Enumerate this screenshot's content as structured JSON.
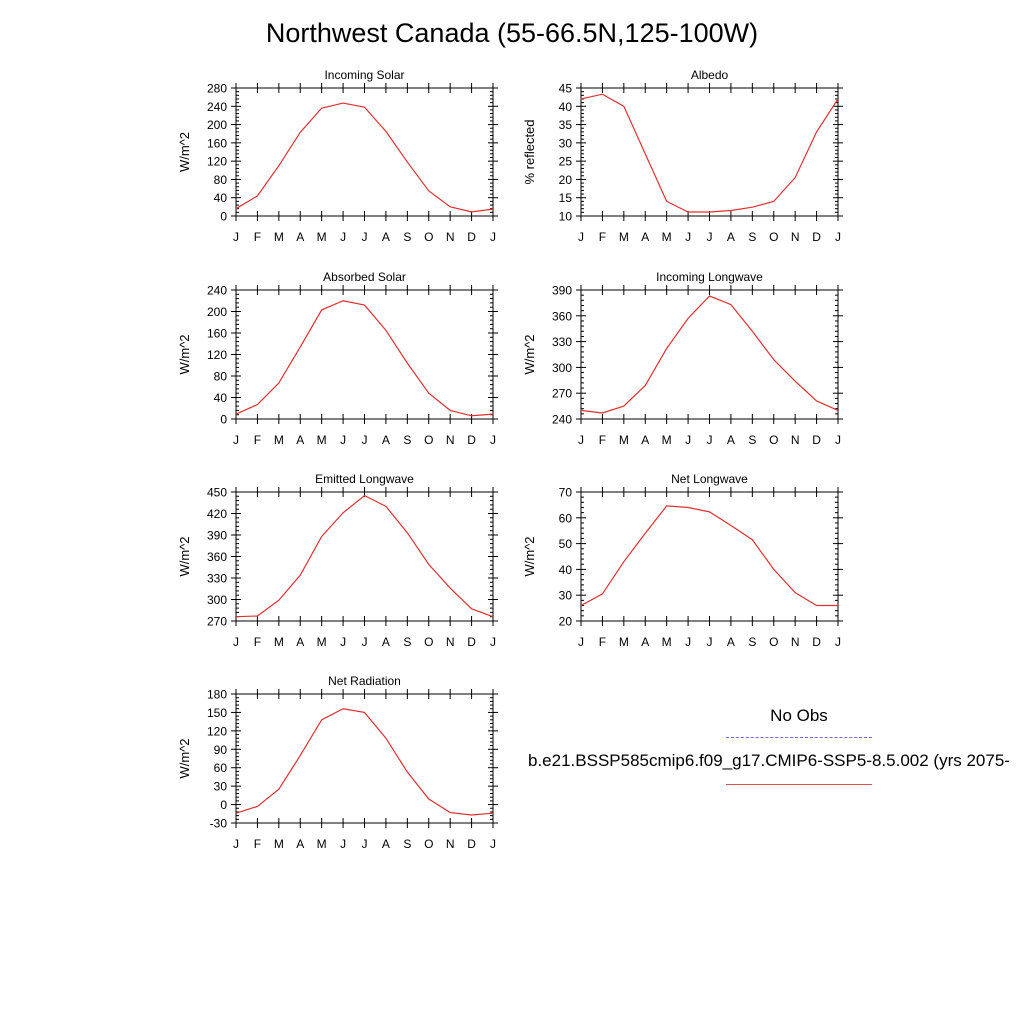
{
  "title": "Northwest Canada (55-66.5N,125-100W)",
  "legend": {
    "obs_label": "No Obs",
    "obs_color": "#6b6bdc",
    "model_label": "b.e21.BSSP585cmip6.f09_g17.CMIP6-SSP5-8.5.002 (yrs 2075-",
    "model_color": "#e03030"
  },
  "chart_data": [
    {
      "type": "line",
      "title": "Incoming Solar",
      "ylabel": "W/m^2",
      "x": [
        "J",
        "F",
        "M",
        "A",
        "M",
        "J",
        "J",
        "A",
        "S",
        "O",
        "N",
        "D",
        "J"
      ],
      "ylim": [
        0,
        280
      ],
      "yticks": [
        0,
        40,
        80,
        120,
        160,
        200,
        240,
        280
      ],
      "series": [
        {
          "values": [
            16,
            44,
            110,
            183,
            236,
            247,
            238,
            185,
            118,
            55,
            20,
            9,
            15
          ],
          "color": "#e03030"
        }
      ]
    },
    {
      "type": "line",
      "title": "Albedo",
      "ylabel": "% reflected",
      "x": [
        "J",
        "F",
        "M",
        "A",
        "M",
        "J",
        "J",
        "A",
        "S",
        "O",
        "N",
        "D",
        "J"
      ],
      "ylim": [
        10,
        45
      ],
      "yticks": [
        10,
        15,
        20,
        25,
        30,
        35,
        40,
        45
      ],
      "series": [
        {
          "values": [
            42,
            43.3,
            40,
            27,
            14,
            11.1,
            11.1,
            11.5,
            12.4,
            14,
            20.5,
            33,
            42
          ],
          "color": "#e03030"
        }
      ]
    },
    {
      "type": "line",
      "title": "Absorbed Solar",
      "ylabel": "W/m^2",
      "x": [
        "J",
        "F",
        "M",
        "A",
        "M",
        "J",
        "J",
        "A",
        "S",
        "O",
        "N",
        "D",
        "J"
      ],
      "ylim": [
        0,
        240
      ],
      "yticks": [
        0,
        40,
        80,
        120,
        160,
        200,
        240
      ],
      "series": [
        {
          "values": [
            9,
            27,
            67,
            134,
            203,
            220,
            212,
            165,
            104,
            48,
            16,
            6,
            9
          ],
          "color": "#e03030"
        }
      ]
    },
    {
      "type": "line",
      "title": "Incoming Longwave",
      "ylabel": "W/m^2",
      "x": [
        "J",
        "F",
        "M",
        "A",
        "M",
        "J",
        "J",
        "A",
        "S",
        "O",
        "N",
        "D",
        "J"
      ],
      "ylim": [
        240,
        390
      ],
      "yticks": [
        240,
        270,
        300,
        330,
        360,
        390
      ],
      "series": [
        {
          "values": [
            250,
            247,
            255,
            279,
            322,
            357,
            383,
            373,
            342,
            309,
            284,
            261,
            250
          ],
          "color": "#e03030"
        }
      ]
    },
    {
      "type": "line",
      "title": "Emitted Longwave",
      "ylabel": "W/m^2",
      "x": [
        "J",
        "F",
        "M",
        "A",
        "M",
        "J",
        "J",
        "A",
        "S",
        "O",
        "N",
        "D",
        "J"
      ],
      "ylim": [
        270,
        450
      ],
      "yticks": [
        270,
        300,
        330,
        360,
        390,
        420,
        450
      ],
      "series": [
        {
          "values": [
            276,
            277,
            299,
            334,
            388,
            421,
            445,
            430,
            393,
            349,
            316,
            287,
            276
          ],
          "color": "#e03030"
        }
      ]
    },
    {
      "type": "line",
      "title": "Net Longwave",
      "ylabel": "W/m^2",
      "x": [
        "J",
        "F",
        "M",
        "A",
        "M",
        "J",
        "J",
        "A",
        "S",
        "O",
        "N",
        "D",
        "J"
      ],
      "ylim": [
        20,
        70
      ],
      "yticks": [
        20,
        30,
        40,
        50,
        60,
        70
      ],
      "series": [
        {
          "values": [
            26,
            30.5,
            43,
            54,
            64.6,
            64,
            62.3,
            57,
            51.5,
            40,
            31,
            26,
            26
          ],
          "color": "#e03030"
        }
      ]
    },
    {
      "type": "line",
      "title": "Net Radiation",
      "ylabel": "W/m^2",
      "x": [
        "J",
        "F",
        "M",
        "A",
        "M",
        "J",
        "J",
        "A",
        "S",
        "O",
        "N",
        "D",
        "J"
      ],
      "ylim": [
        -30,
        180
      ],
      "yticks": [
        -30,
        0,
        30,
        60,
        90,
        120,
        150,
        180
      ],
      "series": [
        {
          "values": [
            -14,
            -3,
            25,
            80,
            138,
            156,
            150,
            108,
            53,
            9,
            -13,
            -17,
            -14
          ],
          "color": "#e03030"
        }
      ]
    }
  ]
}
